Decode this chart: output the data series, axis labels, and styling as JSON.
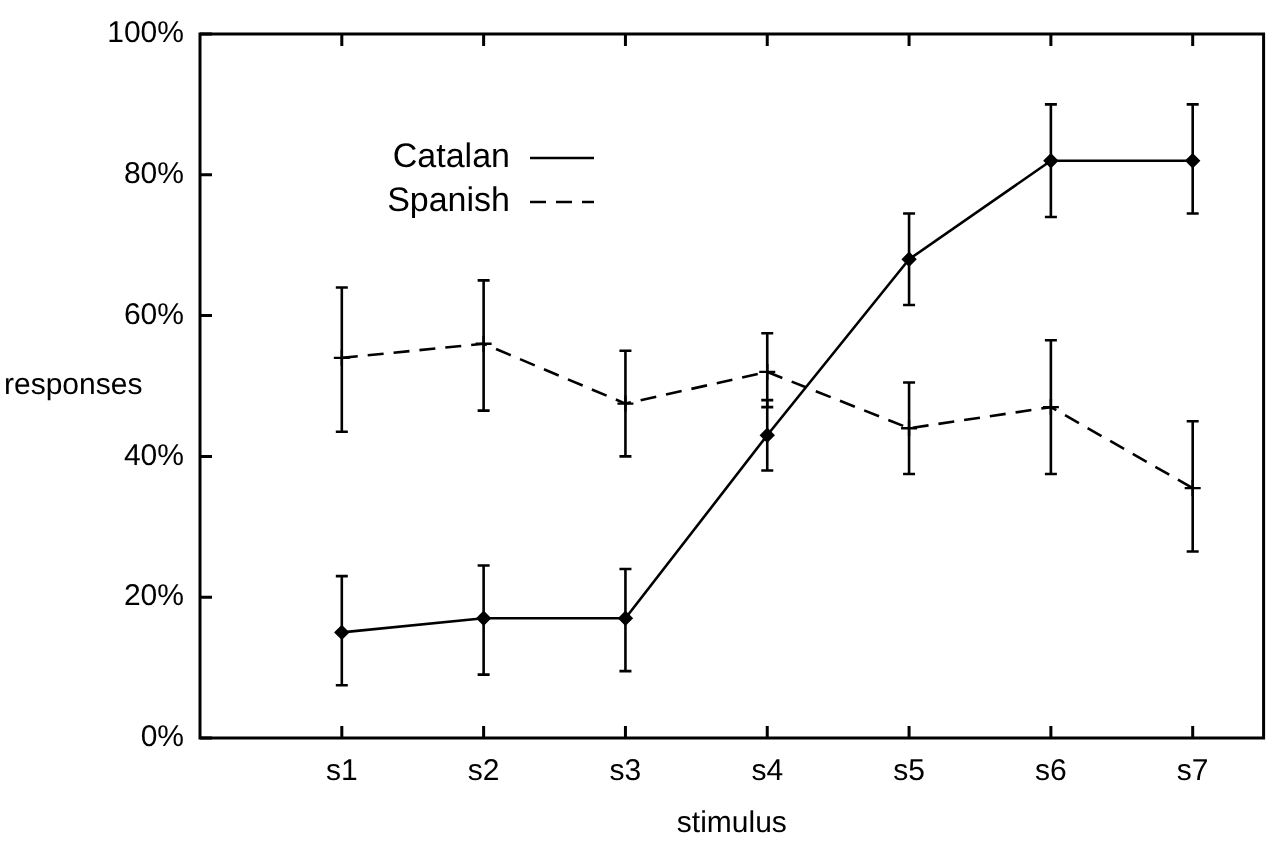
{
  "chart_data": {
    "type": "line",
    "xlabel": "stimulus",
    "ylabel": "responses",
    "categories": [
      "s1",
      "s2",
      "s3",
      "s4",
      "s5",
      "s6",
      "s7"
    ],
    "ylim": [
      0,
      100
    ],
    "yticks": [
      {
        "value": 0,
        "label": "0%"
      },
      {
        "value": 20,
        "label": "20%"
      },
      {
        "value": 40,
        "label": "40%"
      },
      {
        "value": 60,
        "label": "60%"
      },
      {
        "value": 80,
        "label": "80%"
      },
      {
        "value": 100,
        "label": "100%"
      }
    ],
    "legend": "top left",
    "grid": false,
    "series": [
      {
        "name": "Catalan",
        "color": "#000000",
        "line_style": "solid",
        "marker": "diamond",
        "values": [
          15,
          17,
          17,
          43,
          68,
          82,
          82
        ],
        "errors": [
          [
            7.5,
            23
          ],
          [
            9,
            24.5
          ],
          [
            9.5,
            24
          ],
          [
            38,
            48
          ],
          [
            61.5,
            74.5
          ],
          [
            74,
            90
          ],
          [
            74.5,
            90
          ]
        ]
      },
      {
        "name": "Spanish",
        "color": "#000000",
        "line_style": "dashed",
        "marker": "cross",
        "values": [
          54,
          56,
          47.5,
          52,
          44,
          47,
          35.5
        ],
        "errors": [
          [
            43.5,
            64
          ],
          [
            46.5,
            65
          ],
          [
            40,
            55
          ],
          [
            47,
            57.5
          ],
          [
            37.5,
            50.5
          ],
          [
            37.5,
            56.5
          ],
          [
            26.5,
            45
          ]
        ]
      }
    ]
  }
}
